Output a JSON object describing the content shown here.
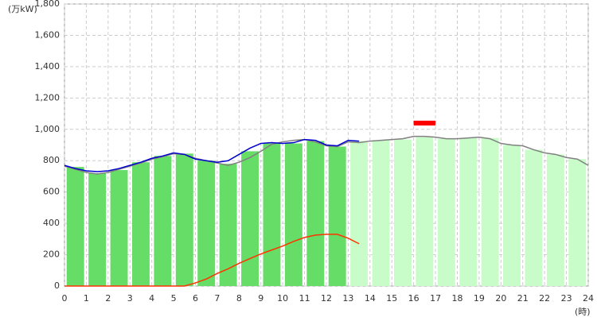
{
  "chart_data": {
    "type": "combo",
    "y_unit_label": "(万kW)",
    "x_unit_label": "(時)",
    "xlim": [
      0,
      24
    ],
    "xticks": [
      0,
      1,
      2,
      3,
      4,
      5,
      6,
      7,
      8,
      9,
      10,
      11,
      12,
      13,
      14,
      15,
      16,
      17,
      18,
      19,
      20,
      21,
      22,
      23,
      24
    ],
    "ylim": [
      0,
      1800
    ],
    "yticks": [
      0,
      200,
      400,
      600,
      800,
      {
        "value": 1000,
        "label": "1,000"
      },
      {
        "value": 1200,
        "label": "1,200"
      },
      {
        "value": 1400,
        "label": "1,400"
      },
      {
        "value": 1600,
        "label": "1,600"
      },
      {
        "value": 1800,
        "label": "1,800"
      }
    ],
    "grid": true,
    "series": [
      {
        "type": "bar",
        "color": "#66dd66",
        "x": [
          0,
          1,
          2,
          3,
          4,
          5,
          6,
          7,
          8,
          9,
          10,
          11,
          12
        ],
        "values": [
          760,
          720,
          740,
          790,
          830,
          845,
          800,
          780,
          860,
          910,
          910,
          925,
          890
        ]
      },
      {
        "type": "bar",
        "color": "#c8fcc8",
        "x": [
          13,
          14,
          15,
          16,
          17,
          18,
          19,
          20,
          21,
          22,
          23
        ],
        "values": [
          925,
          930,
          935,
          950,
          940,
          945,
          945,
          900,
          870,
          840,
          810
        ]
      },
      {
        "type": "line",
        "color": "#808080",
        "x": [
          0,
          0.5,
          1,
          1.5,
          2,
          2.5,
          3,
          3.5,
          4,
          4.5,
          5,
          5.5,
          6,
          6.5,
          7,
          7.5,
          8,
          8.5,
          9,
          9.5,
          10,
          10.5,
          11,
          11.5,
          12,
          12.5,
          13,
          13.5,
          14,
          14.5,
          15,
          15.5,
          16,
          16.5,
          17,
          17.5,
          18,
          18.5,
          19,
          19.5,
          20,
          20.5,
          21,
          21.5,
          22,
          22.5,
          23,
          23.5,
          24
        ],
        "values": [
          765,
          745,
          725,
          715,
          725,
          745,
          765,
          785,
          810,
          825,
          845,
          840,
          815,
          800,
          785,
          770,
          790,
          820,
          860,
          905,
          920,
          930,
          935,
          920,
          895,
          890,
          920,
          915,
          925,
          930,
          935,
          940,
          955,
          955,
          950,
          940,
          940,
          945,
          950,
          940,
          910,
          900,
          895,
          870,
          850,
          840,
          820,
          810,
          770
        ]
      },
      {
        "type": "line",
        "color": "#0000cc",
        "x": [
          0,
          0.5,
          1,
          1.5,
          2,
          2.5,
          3,
          3.5,
          4,
          4.5,
          5,
          5.5,
          6,
          6.5,
          7,
          7.5,
          8,
          8.5,
          9,
          9.5,
          10,
          10.5,
          11,
          11.5,
          12,
          12.5,
          13,
          13.5
        ],
        "values": [
          770,
          750,
          735,
          730,
          735,
          750,
          770,
          790,
          815,
          830,
          850,
          840,
          810,
          800,
          790,
          800,
          840,
          880,
          910,
          915,
          910,
          915,
          935,
          930,
          900,
          895,
          930,
          925
        ]
      },
      {
        "type": "line",
        "color": "#ff3300",
        "x": [
          0,
          1,
          2,
          3,
          4,
          5,
          5.5,
          6,
          6.5,
          7,
          7.5,
          8,
          8.5,
          9,
          9.5,
          10,
          10.5,
          11,
          11.5,
          12,
          12.5,
          13,
          13.5
        ],
        "values": [
          0,
          0,
          0,
          0,
          0,
          0,
          0,
          20,
          45,
          80,
          110,
          145,
          175,
          205,
          230,
          255,
          285,
          310,
          325,
          330,
          330,
          305,
          270
        ]
      }
    ],
    "peak": {
      "color": "#ff0000",
      "x": [
        16,
        17
      ],
      "value": 1040
    }
  }
}
